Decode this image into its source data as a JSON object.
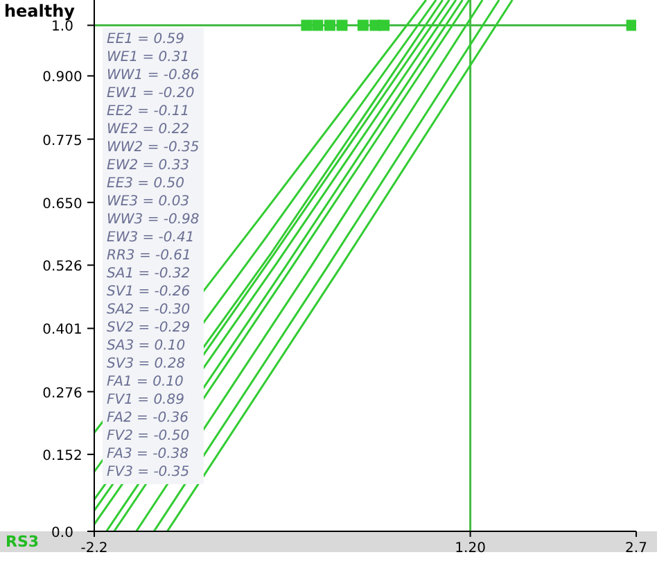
{
  "chart_data": {
    "type": "line",
    "xlabel": "RS3",
    "ylabel": "healthy",
    "xlim": [
      -2.2,
      2.7
    ],
    "xticks": [
      -2.2,
      {
        "value": 1.2,
        "label": "1.20"
      },
      2.7
    ],
    "ylim": [
      0,
      1.05
    ],
    "yticks": [
      {
        "value": 0,
        "label": "0.0"
      },
      0.152,
      0.276,
      0.401,
      0.526,
      {
        "value": 0.65,
        "label": "0.650"
      },
      0.775,
      {
        "value": 0.9,
        "label": "0.900"
      },
      {
        "value": 1,
        "label": "1.0"
      }
    ],
    "grid": false,
    "legend": false,
    "marker": "none",
    "line_style": "solid",
    "series": [
      {
        "color": "#33cc33",
        "x": [
          -2.2,
          -0.7,
          0.8
        ],
        "values": [
          0.195,
          0.62,
          1.05
        ]
      },
      {
        "color": "#33cc33",
        "x": [
          -2.2,
          -0.65,
          0.89
        ],
        "values": [
          0.118,
          0.58,
          1.05
        ]
      },
      {
        "color": "#33cc33",
        "x": [
          -2.2,
          -0.6,
          0.95
        ],
        "values": [
          0.063,
          0.55,
          1.05
        ]
      },
      {
        "color": "#33cc33",
        "x": [
          -2.2,
          -0.6,
          1.01
        ],
        "values": [
          0.041,
          0.54,
          1.05
        ]
      },
      {
        "color": "#33cc33",
        "x": [
          -2.2,
          -0.55,
          1.07
        ],
        "values": [
          0.014,
          0.53,
          1.05
        ]
      },
      {
        "color": "#33cc33",
        "x": [
          -2.09,
          -0.48,
          1.13
        ],
        "values": [
          0,
          0.52,
          1.05
        ]
      },
      {
        "color": "#33cc33",
        "x": [
          -2.02,
          -0.42,
          1.19
        ],
        "values": [
          0,
          0.52,
          1.05
        ]
      },
      {
        "color": "#33cc33",
        "x": [
          -1.82,
          -0.25,
          1.31
        ],
        "values": [
          0,
          0.52,
          1.05
        ]
      },
      {
        "color": "#33cc33",
        "x": [
          -1.66,
          -0.1,
          1.46
        ],
        "values": [
          0,
          0.52,
          1.05
        ]
      },
      {
        "color": "#33cc33",
        "x": [
          -1.54,
          0.02,
          1.58
        ],
        "values": [
          0,
          0.52,
          1.05
        ]
      },
      {
        "type": "scatter",
        "color": "#33cc33",
        "marker": "square",
        "x": [
          -0.28,
          -0.18,
          -0.07,
          0.04,
          0.23,
          0.34,
          0.42,
          2.66
        ],
        "values": [
          1,
          1,
          1,
          1,
          1,
          1,
          1,
          1
        ]
      }
    ],
    "ref_lines": [
      {
        "axis": "x",
        "value": 1.2,
        "color": "#44bb44"
      },
      {
        "axis": "y",
        "value": 1,
        "color": "#44bb44"
      }
    ],
    "annotations": [
      "EE1 = 0.59",
      "WE1 = 0.31",
      "WW1 = -0.86",
      "EW1 = -0.20",
      "EE2 = -0.11",
      "WE2 = 0.22",
      "WW2 = -0.35",
      "EW2 = 0.33",
      "EE3 = 0.50",
      "WE3 = 0.03",
      "WW3 = -0.98",
      "EW3 = -0.41",
      "RR3 = -0.61",
      "SA1 = -0.32",
      "SV1 = -0.26",
      "SA2 = -0.30",
      "SV2 = -0.29",
      "SA3 = 0.10",
      "SV3 = 0.28",
      "FA1 = 0.10",
      "FV1 = 0.89",
      "FA2 = -0.36",
      "FV2 = -0.50",
      "FA3 = -0.38",
      "FV3 = -0.35"
    ]
  }
}
